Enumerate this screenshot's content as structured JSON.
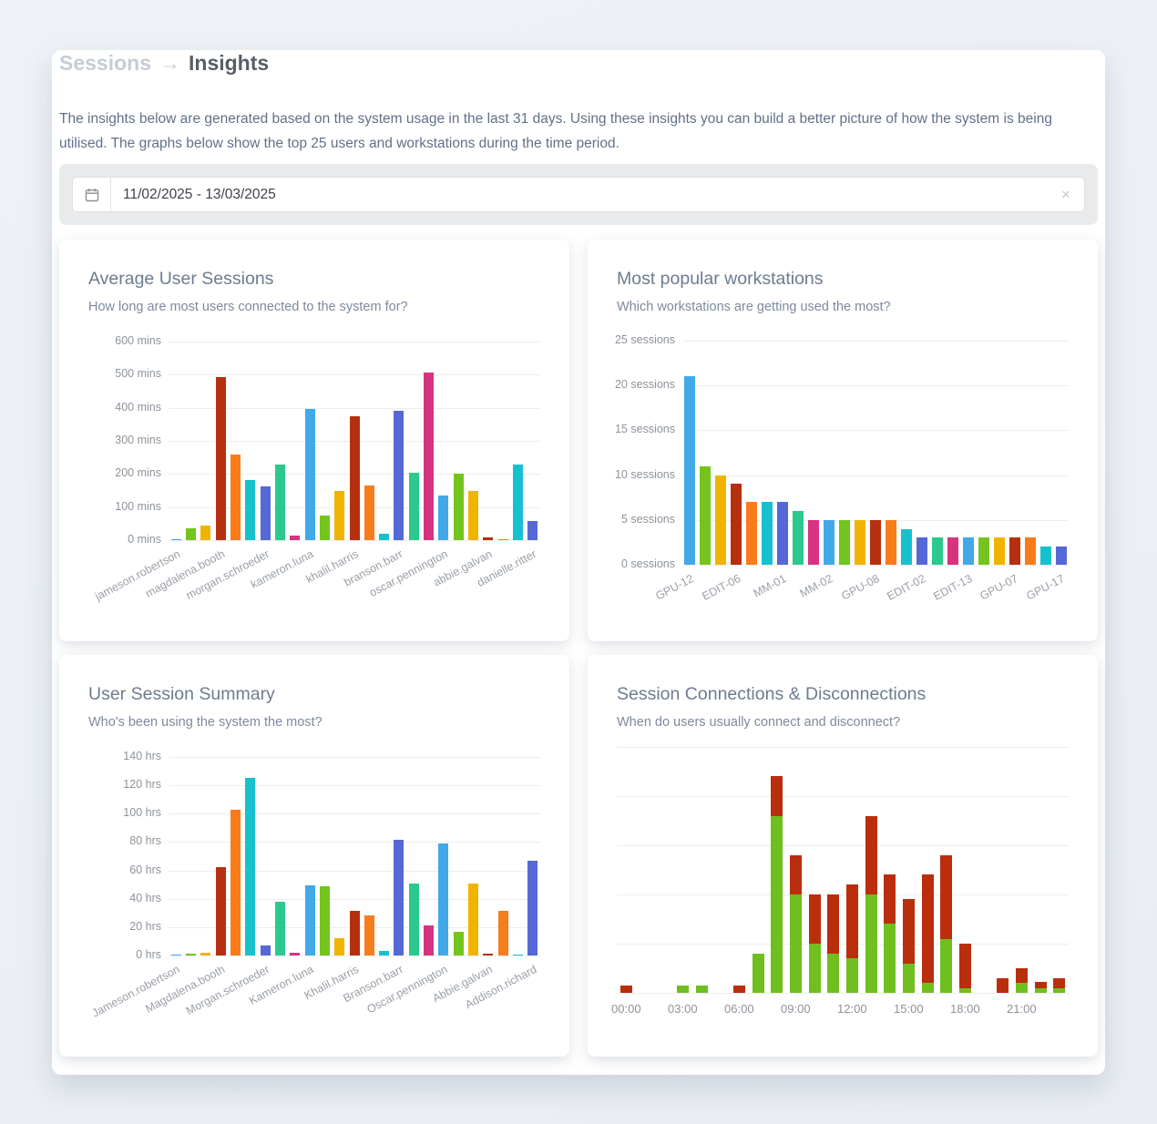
{
  "page": {
    "breadcrumb": {
      "parent": "Sessions",
      "separator": "→",
      "current": "Insights"
    },
    "intro": "The insights below are generated based on the system usage in the last 31 days. Using these insights you can build a better picture of how the system is being utilised. The graphs below show the top 25 users and workstations during the time period.",
    "date_filter": {
      "value": "11/02/2025 - 13/03/2025",
      "calendar_icon": "calendar",
      "clear_icon": "×"
    }
  },
  "colors": {
    "background": "#edf1f5",
    "card": "#ffffff",
    "gridline": "#ededee",
    "palette": [
      "#41a9e8",
      "#74c41d",
      "#f0b400",
      "#b5300e",
      "#f97c1b",
      "#17c0cd",
      "#5568d6",
      "#2bc98e",
      "#d63381"
    ],
    "connections_green": "#6fbf1f",
    "disconnections_red": "#ba2e0d"
  },
  "chart_data": [
    {
      "type": "bar",
      "title": "Average User Sessions",
      "subtitle": "How long are most users connected to the system for?",
      "ylim": [
        0,
        600
      ],
      "ytick_step": 100,
      "ytick_suffix": " mins",
      "grid": true,
      "legend": "none",
      "values": [
        2,
        37,
        43,
        493,
        260,
        182,
        163,
        228,
        13,
        395,
        73,
        148,
        375,
        165,
        20,
        390,
        204,
        507,
        135,
        200,
        150,
        8,
        4,
        228,
        58
      ],
      "tick_every": 3,
      "tick_labels": [
        "jameson.robertson",
        "magdalena.booth",
        "morgan.schroeder",
        "kameron.luna",
        "khalil.harris",
        "branson.barr",
        "oscar.pennington",
        "abbie.galvan",
        "danielle.ritter"
      ]
    },
    {
      "type": "bar",
      "title": "Most popular workstations",
      "subtitle": "Which workstations are getting used the most?",
      "ylim": [
        0,
        25
      ],
      "ytick_step": 5,
      "ytick_suffix": " sessions",
      "grid": true,
      "legend": "none",
      "values": [
        21,
        11,
        10,
        9,
        7,
        7,
        7,
        6,
        5,
        5,
        5,
        5,
        5,
        5,
        4,
        3,
        3,
        3,
        3,
        3,
        3,
        3,
        3,
        2,
        2
      ],
      "tick_every": 3,
      "tick_labels": [
        "GPU-12",
        "EDIT-06",
        "MM-01",
        "MM-02",
        "GPU-08",
        "EDIT-02",
        "EDIT-13",
        "GPU-07",
        "GPU-17"
      ]
    },
    {
      "type": "bar",
      "title": "User Session Summary",
      "subtitle": "Who's been using the system the most?",
      "ylim": [
        0,
        140
      ],
      "ytick_step": 20,
      "ytick_suffix": " hrs",
      "grid": true,
      "legend": "none",
      "values": [
        0.5,
        1.5,
        2,
        62,
        103,
        125,
        7,
        38,
        2,
        49.5,
        48.5,
        12.5,
        31.5,
        28,
        3.5,
        81.5,
        51,
        21.5,
        79,
        17,
        50.5,
        1.5,
        31.5,
        0.5,
        67
      ],
      "tick_every": 3,
      "tick_labels": [
        "Jameson.robertson",
        "Magdalena.booth",
        "Morgan.schroeder",
        "Kameron.luna",
        "Khalil.harris",
        "Branson.barr",
        "Oscar.pennington",
        "Abbie.galvan",
        "Addison.richard"
      ]
    },
    {
      "type": "stacked-bar",
      "title": "Session Connections & Disconnections",
      "subtitle": "When do users usually connect and disconnect?",
      "ylim": [
        0,
        25
      ],
      "ytick_step": 5,
      "grid": true,
      "legend": "none",
      "categories": [
        "00:00",
        "01:00",
        "02:00",
        "03:00",
        "04:00",
        "05:00",
        "06:00",
        "07:00",
        "08:00",
        "09:00",
        "10:00",
        "11:00",
        "12:00",
        "13:00",
        "14:00",
        "15:00",
        "16:00",
        "17:00",
        "18:00",
        "19:00",
        "20:00",
        "21:00",
        "22:00",
        "23:00"
      ],
      "tick_every": 3,
      "tick_labels": [
        "00:00",
        "03:00",
        "06:00",
        "09:00",
        "12:00",
        "15:00",
        "18:00",
        "21:00"
      ],
      "series": [
        {
          "name": "connections",
          "color": "#6fbf1f",
          "values": [
            0,
            0,
            0,
            0.7,
            0.7,
            0,
            0,
            4,
            18,
            10,
            5,
            4,
            3.5,
            10,
            7,
            3,
            1,
            5.5,
            0.5,
            0,
            0,
            1,
            0.5,
            0.5
          ]
        },
        {
          "name": "disconnections",
          "color": "#ba2e0d",
          "values": [
            0.7,
            0,
            0,
            0,
            0,
            0,
            0.7,
            0,
            4,
            4,
            5,
            6,
            7.5,
            8,
            5,
            6.5,
            11,
            8.5,
            4.5,
            0,
            1.5,
            1.5,
            0.6,
            1
          ]
        }
      ]
    }
  ]
}
